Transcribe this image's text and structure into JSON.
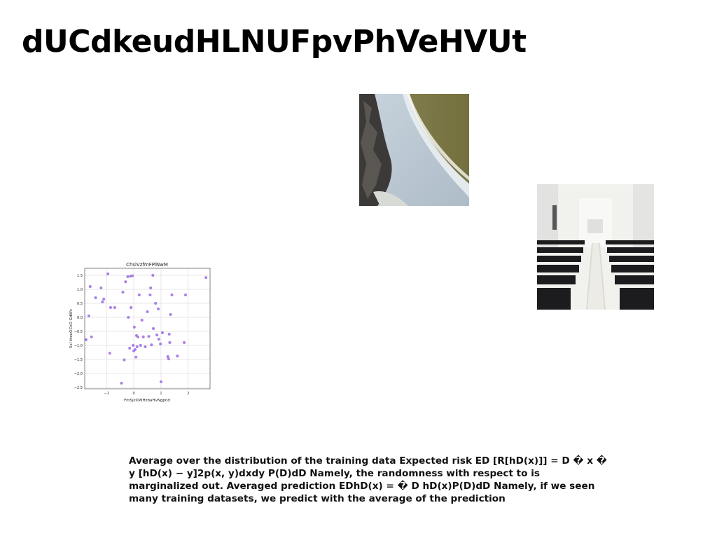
{
  "page": {
    "title": "dUCdkeudHLNUFpvPhVeHVUt",
    "paragraph": "Average over the distribution of the training data Expected risk ED [R[hD(x)]] = D � x � y [hD(x) − y]2p(x, y)dxdy P(D)dD Namely, the randomness with respect to is marginalized out. Averaged prediction EDhD(x) = � D hD(x)P(D)dD Namely, if we seen many training datasets, we predict with the average of the prediction"
  },
  "images": {
    "beach": {
      "description": "aerial-beach-photo"
    },
    "church": {
      "description": "church-interior-pews-photo"
    }
  },
  "chart_data": {
    "type": "scatter",
    "title": "ChsiVzfmFPlNwM",
    "xlabel": "FmSjzXMiHzbaHvNgpnd",
    "ylabel": "Sxl kteuOCkO GdWv",
    "xlim": [
      -1.8,
      2.8
    ],
    "ylim": [
      -2.55,
      1.75
    ],
    "xticks": [
      -1,
      0,
      1,
      2
    ],
    "yticks": [
      -2.5,
      -2.0,
      -1.5,
      -1.0,
      -0.5,
      0.0,
      0.5,
      1.0,
      1.5
    ],
    "ytick_labels": [
      "−2.5",
      "−2.0",
      "−1.5",
      "−1.0",
      "−0.5",
      "0.0",
      "0.5",
      "1.0",
      "1.5"
    ],
    "xtick_labels": [
      "−1",
      "0",
      "1",
      "2"
    ],
    "grid": true,
    "color": "#a97fe6",
    "x": [
      -1.75,
      -1.65,
      -1.6,
      -1.55,
      -1.4,
      -1.2,
      -1.15,
      -1.1,
      -0.95,
      -0.88,
      -0.85,
      -0.7,
      -0.45,
      -0.4,
      -0.35,
      -0.3,
      -0.22,
      -0.2,
      -0.15,
      -0.12,
      -0.1,
      -0.05,
      -0.02,
      0.0,
      0.02,
      0.05,
      0.08,
      0.1,
      0.12,
      0.15,
      0.2,
      0.25,
      0.3,
      0.35,
      0.42,
      0.5,
      0.55,
      0.6,
      0.62,
      0.65,
      0.7,
      0.72,
      0.8,
      0.85,
      0.9,
      0.92,
      0.98,
      1.0,
      1.05,
      1.25,
      1.28,
      1.3,
      1.32,
      1.35,
      1.4,
      1.6,
      1.85,
      1.9,
      2.65
    ],
    "y": [
      -0.8,
      0.05,
      1.1,
      -0.7,
      0.7,
      1.05,
      0.55,
      0.65,
      1.55,
      -1.28,
      0.35,
      0.35,
      -2.35,
      0.9,
      -1.52,
      1.27,
      1.45,
      0.0,
      -1.1,
      1.47,
      0.35,
      1.48,
      -1.0,
      -1.2,
      -0.35,
      -1.15,
      -1.42,
      -0.65,
      -1.05,
      -0.7,
      0.8,
      -1.0,
      -0.1,
      -0.7,
      -1.05,
      0.2,
      -0.68,
      0.8,
      1.05,
      -0.98,
      1.5,
      -0.4,
      0.5,
      -0.63,
      0.3,
      -0.78,
      -0.95,
      -2.3,
      -0.55,
      -1.4,
      -1.48,
      -0.6,
      -0.9,
      0.1,
      0.8,
      -1.38,
      -0.9,
      0.8,
      1.42
    ]
  }
}
